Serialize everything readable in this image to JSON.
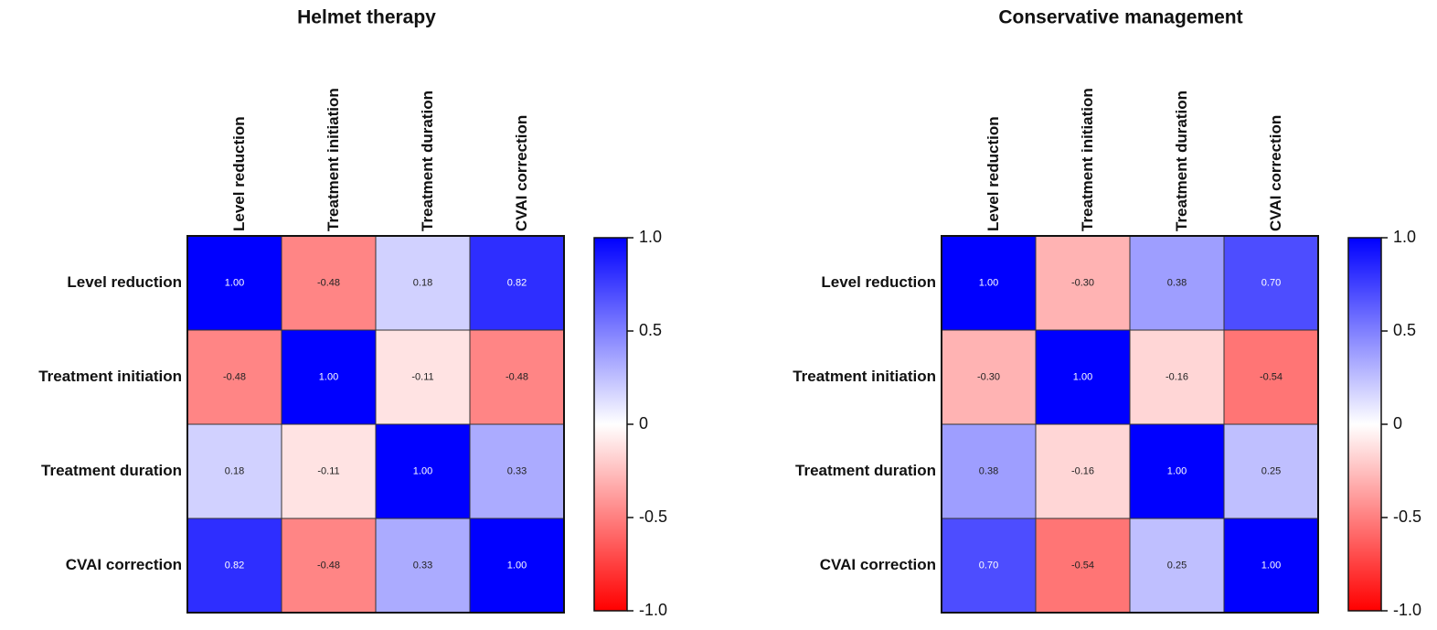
{
  "chart_data": [
    {
      "type": "heatmap",
      "title": "Helmet therapy",
      "categories": [
        "Level reduction",
        "Treatment initiation",
        "Treatment duration",
        "CVAI correction"
      ],
      "values": [
        [
          1.0,
          -0.48,
          0.18,
          0.82
        ],
        [
          -0.48,
          1.0,
          -0.11,
          -0.48
        ],
        [
          0.18,
          -0.11,
          1.0,
          0.33
        ],
        [
          0.82,
          -0.48,
          0.33,
          1.0
        ]
      ],
      "value_labels": [
        [
          "1.00",
          "-0.48",
          "0.18",
          "0.82"
        ],
        [
          "-0.48",
          "1.00",
          "-0.11",
          "-0.48"
        ],
        [
          "0.18",
          "-0.11",
          "1.00",
          "0.33"
        ],
        [
          "0.82",
          "-0.48",
          "0.33",
          "1.00"
        ]
      ],
      "zlim": [
        -1,
        1
      ],
      "colorscale": [
        "#ff0000",
        "#ffffff",
        "#0000ff"
      ],
      "colorbar_ticks": [
        {
          "value": 1,
          "label": "1.0"
        },
        0.5,
        0,
        -0.5,
        {
          "value": -1,
          "label": "-1.0"
        }
      ]
    },
    {
      "type": "heatmap",
      "title": "Conservative management",
      "categories": [
        "Level reduction",
        "Treatment initiation",
        "Treatment duration",
        "CVAI correction"
      ],
      "values": [
        [
          1.0,
          -0.3,
          0.38,
          0.7
        ],
        [
          -0.3,
          1.0,
          -0.16,
          -0.54
        ],
        [
          0.38,
          -0.16,
          1.0,
          0.25
        ],
        [
          0.7,
          -0.54,
          0.25,
          1.0
        ]
      ],
      "value_labels": [
        [
          "1.00",
          "-0.30",
          "0.38",
          "0.70"
        ],
        [
          "-0.30",
          "1.00",
          "-0.16",
          "-0.54"
        ],
        [
          "0.38",
          "-0.16",
          "1.00",
          "0.25"
        ],
        [
          "0.70",
          "-0.54",
          "0.25",
          "1.00"
        ]
      ],
      "zlim": [
        -1,
        1
      ],
      "colorscale": [
        "#ff0000",
        "#ffffff",
        "#0000ff"
      ],
      "colorbar_ticks": [
        {
          "value": 1,
          "label": "1.0"
        },
        0.5,
        0,
        -0.5,
        {
          "value": -1,
          "label": "-1.0"
        }
      ]
    }
  ]
}
